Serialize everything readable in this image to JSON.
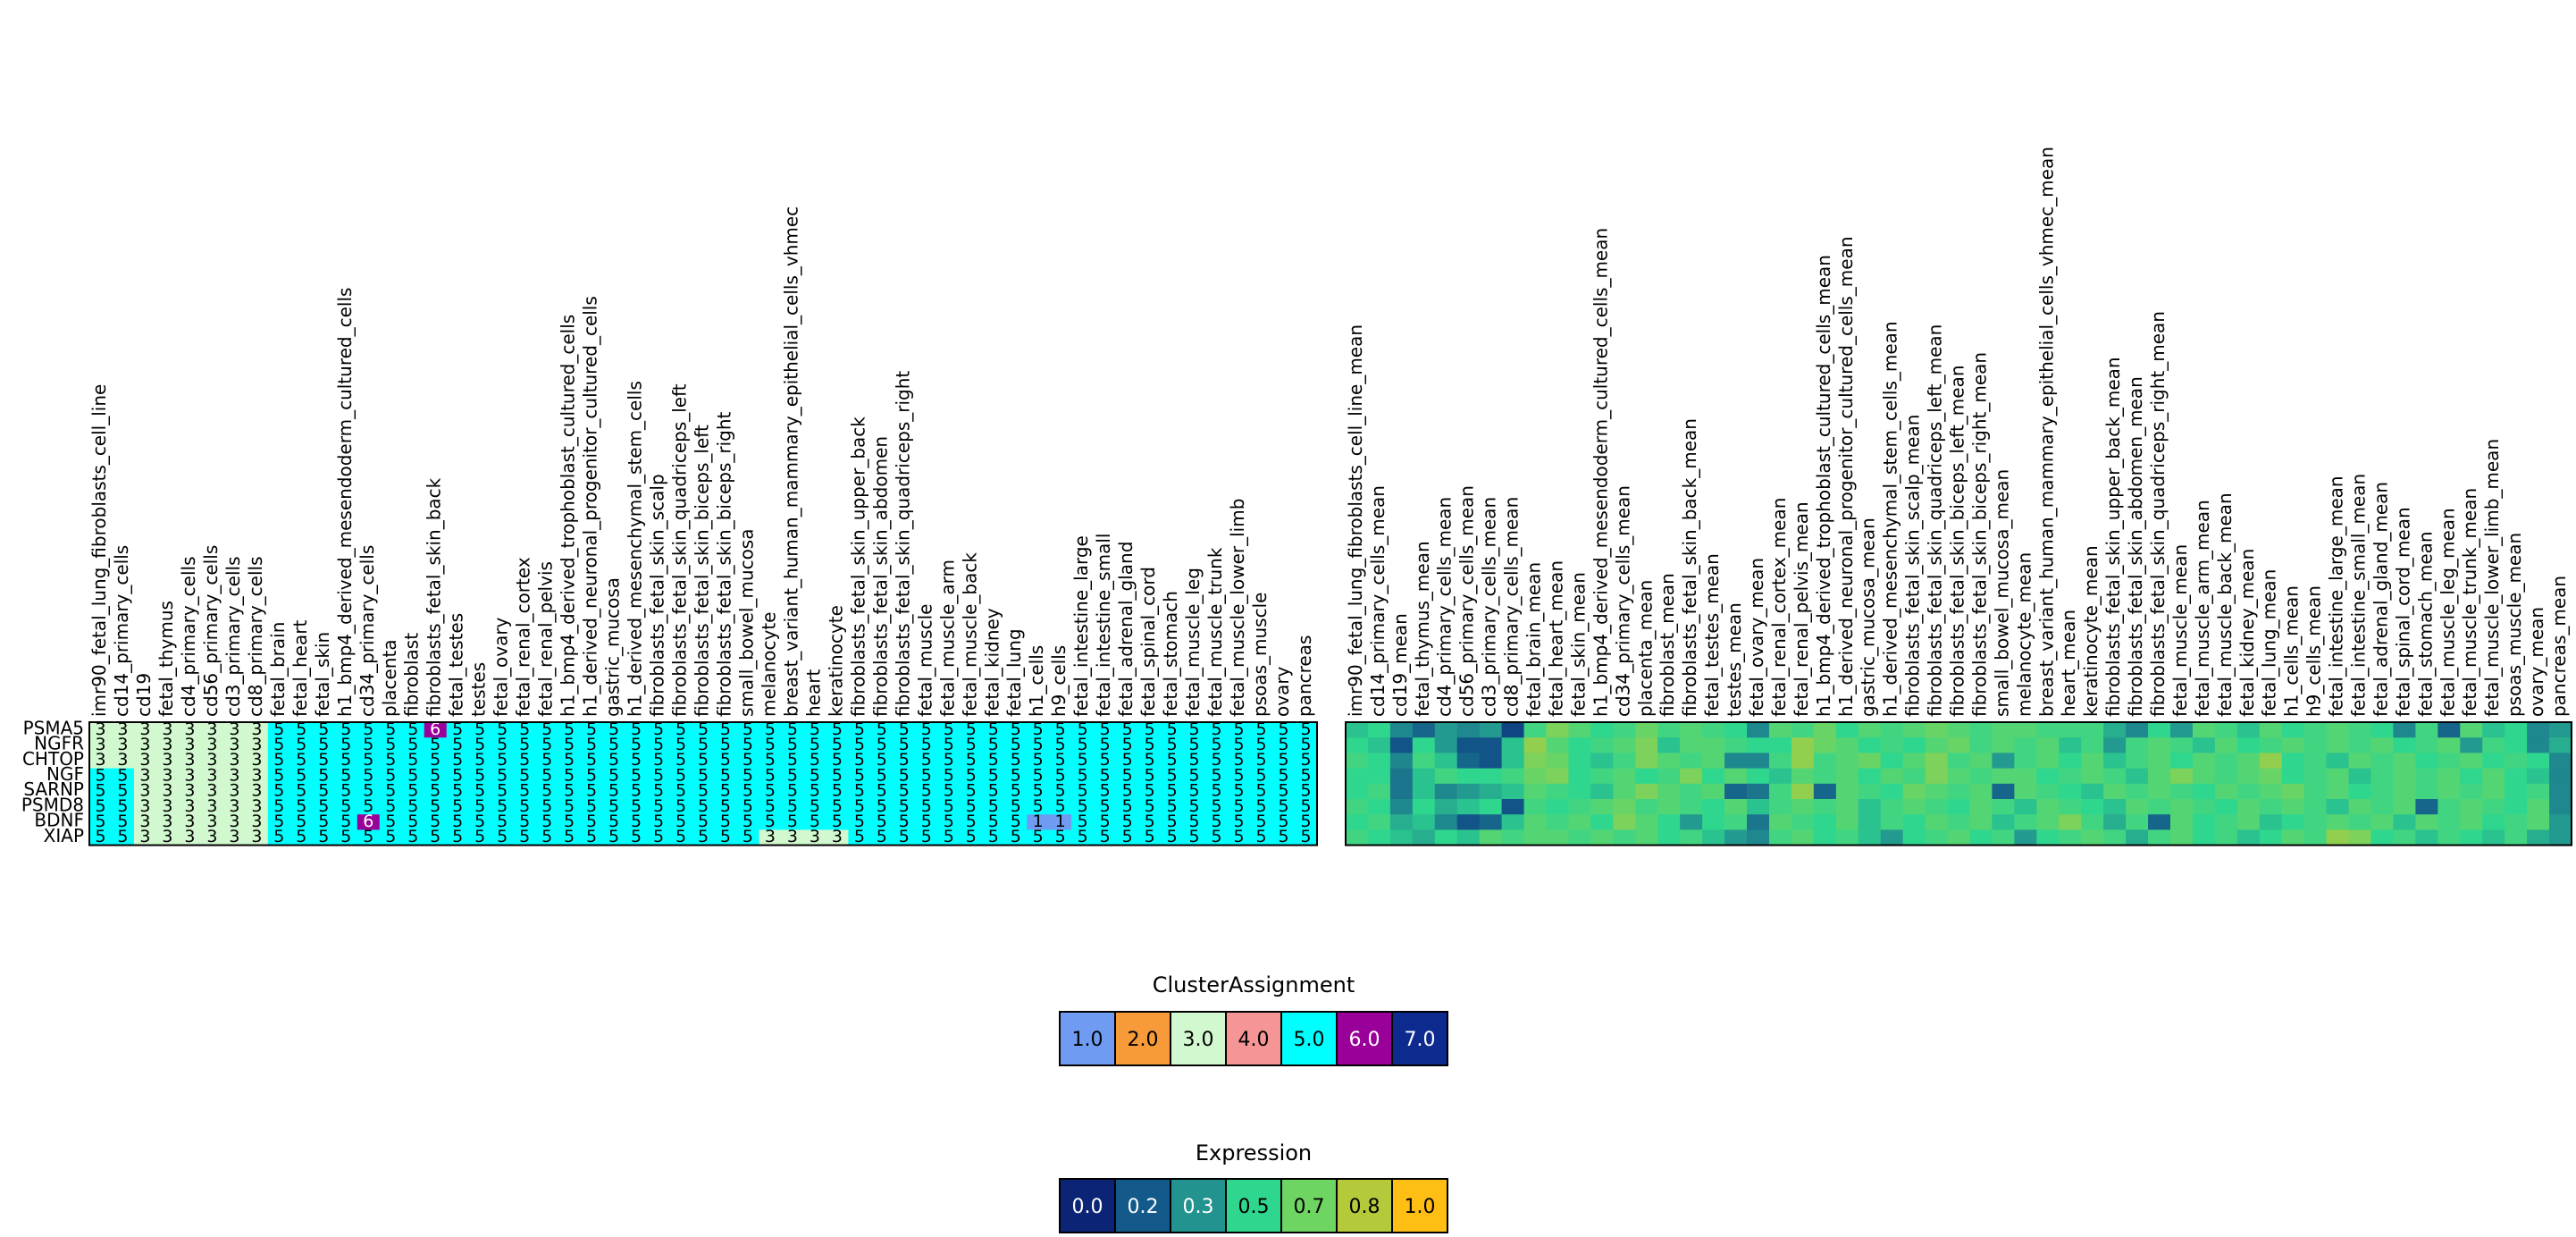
{
  "chart_data": {
    "type": "heatmap",
    "rows": [
      "PSMA5",
      "NGFR",
      "CHTOP",
      "NGF",
      "SARNP",
      "PSMD8",
      "BDNF",
      "XIAP"
    ],
    "cluster_columns": [
      "imr90_fetal_lung_fibroblasts_cell_line",
      "cd14_primary_cells",
      "cd19",
      "fetal_thymus",
      "cd4_primary_cells",
      "cd56_primary_cells",
      "cd3_primary_cells",
      "cd8_primary_cells",
      "fetal_brain",
      "fetal_heart",
      "fetal_skin",
      "h1_bmp4_derived_mesendoderm_cultured_cells",
      "cd34_primary_cells",
      "placenta",
      "fibroblast",
      "fibroblasts_fetal_skin_back",
      "fetal_testes",
      "testes",
      "fetal_ovary",
      "fetal_renal_cortex",
      "fetal_renal_pelvis",
      "h1_bmp4_derived_trophoblast_cultured_cells",
      "h1_derived_neuronal_progenitor_cultured_cells",
      "gastric_mucosa",
      "h1_derived_mesenchymal_stem_cells",
      "fibroblasts_fetal_skin_scalp",
      "fibroblasts_fetal_skin_quadriceps_left",
      "fibroblasts_fetal_skin_biceps_left",
      "fibroblasts_fetal_skin_biceps_right",
      "small_bowel_mucosa",
      "melanocyte",
      "breast_variant_human_mammary_epithelial_cells_vhmec",
      "heart",
      "keratinocyte",
      "fibroblasts_fetal_skin_upper_back",
      "fibroblasts_fetal_skin_abdomen",
      "fibroblasts_fetal_skin_quadriceps_right",
      "fetal_muscle",
      "fetal_muscle_arm",
      "fetal_muscle_back",
      "fetal_kidney",
      "fetal_lung",
      "h1_cells",
      "h9_cells",
      "fetal_intestine_large",
      "fetal_intestine_small",
      "fetal_adrenal_gland",
      "fetal_spinal_cord",
      "fetal_stomach",
      "fetal_muscle_leg",
      "fetal_muscle_trunk",
      "fetal_muscle_lower_limb",
      "psoas_muscle",
      "ovary",
      "pancreas"
    ],
    "cluster_values": [
      [
        3,
        3,
        3,
        3,
        3,
        3,
        3,
        3,
        5,
        5,
        5,
        5,
        5,
        5,
        5,
        6,
        5,
        5,
        5,
        5,
        5,
        5,
        5,
        5,
        5,
        5,
        5,
        5,
        5,
        5,
        5,
        5,
        5,
        5,
        5,
        5,
        5,
        5,
        5,
        5,
        5,
        5,
        5,
        5,
        5,
        5,
        5,
        5,
        5,
        5,
        5,
        5,
        5,
        5,
        5
      ],
      [
        3,
        3,
        3,
        3,
        3,
        3,
        3,
        3,
        5,
        5,
        5,
        5,
        5,
        5,
        5,
        5,
        5,
        5,
        5,
        5,
        5,
        5,
        5,
        5,
        5,
        5,
        5,
        5,
        5,
        5,
        5,
        5,
        5,
        5,
        5,
        5,
        5,
        5,
        5,
        5,
        5,
        5,
        5,
        5,
        5,
        5,
        5,
        5,
        5,
        5,
        5,
        5,
        5,
        5,
        5
      ],
      [
        3,
        3,
        3,
        3,
        3,
        3,
        3,
        3,
        5,
        5,
        5,
        5,
        5,
        5,
        5,
        5,
        5,
        5,
        5,
        5,
        5,
        5,
        5,
        5,
        5,
        5,
        5,
        5,
        5,
        5,
        5,
        5,
        5,
        5,
        5,
        5,
        5,
        5,
        5,
        5,
        5,
        5,
        5,
        5,
        5,
        5,
        5,
        5,
        5,
        5,
        5,
        5,
        5,
        5,
        5
      ],
      [
        5,
        5,
        3,
        3,
        3,
        3,
        3,
        3,
        5,
        5,
        5,
        5,
        5,
        5,
        5,
        5,
        5,
        5,
        5,
        5,
        5,
        5,
        5,
        5,
        5,
        5,
        5,
        5,
        5,
        5,
        5,
        5,
        5,
        5,
        5,
        5,
        5,
        5,
        5,
        5,
        5,
        5,
        5,
        5,
        5,
        5,
        5,
        5,
        5,
        5,
        5,
        5,
        5,
        5,
        5
      ],
      [
        5,
        5,
        3,
        3,
        3,
        3,
        3,
        3,
        5,
        5,
        5,
        5,
        5,
        5,
        5,
        5,
        5,
        5,
        5,
        5,
        5,
        5,
        5,
        5,
        5,
        5,
        5,
        5,
        5,
        5,
        5,
        5,
        5,
        5,
        5,
        5,
        5,
        5,
        5,
        5,
        5,
        5,
        5,
        5,
        5,
        5,
        5,
        5,
        5,
        5,
        5,
        5,
        5,
        5,
        5
      ],
      [
        5,
        5,
        3,
        3,
        3,
        3,
        3,
        3,
        5,
        5,
        5,
        5,
        5,
        5,
        5,
        5,
        5,
        5,
        5,
        5,
        5,
        5,
        5,
        5,
        5,
        5,
        5,
        5,
        5,
        5,
        5,
        5,
        5,
        5,
        5,
        5,
        5,
        5,
        5,
        5,
        5,
        5,
        5,
        5,
        5,
        5,
        5,
        5,
        5,
        5,
        5,
        5,
        5,
        5,
        5
      ],
      [
        5,
        5,
        3,
        3,
        3,
        3,
        3,
        3,
        5,
        5,
        5,
        5,
        6,
        5,
        5,
        5,
        5,
        5,
        5,
        5,
        5,
        5,
        5,
        5,
        5,
        5,
        5,
        5,
        5,
        5,
        5,
        5,
        5,
        5,
        5,
        5,
        5,
        5,
        5,
        5,
        5,
        5,
        1,
        1,
        5,
        5,
        5,
        5,
        5,
        5,
        5,
        5,
        5,
        5,
        5
      ],
      [
        5,
        5,
        3,
        3,
        3,
        3,
        3,
        3,
        5,
        5,
        5,
        5,
        5,
        5,
        5,
        5,
        5,
        5,
        5,
        5,
        5,
        5,
        5,
        5,
        5,
        5,
        5,
        5,
        5,
        5,
        3,
        3,
        3,
        3,
        5,
        5,
        5,
        5,
        5,
        5,
        5,
        5,
        5,
        5,
        5,
        5,
        5,
        5,
        5,
        5,
        5,
        5,
        5,
        5,
        5
      ]
    ],
    "mean_columns": [
      "imr90_fetal_lung_fibroblasts_cell_line_mean",
      "cd14_primary_cells_mean",
      "cd19_mean",
      "fetal_thymus_mean",
      "cd4_primary_cells_mean",
      "cd56_primary_cells_mean",
      "cd3_primary_cells_mean",
      "cd8_primary_cells_mean",
      "fetal_brain_mean",
      "fetal_heart_mean",
      "fetal_skin_mean",
      "h1_bmp4_derived_mesendoderm_cultured_cells_mean",
      "cd34_primary_cells_mean",
      "placenta_mean",
      "fibroblast_mean",
      "fibroblasts_fetal_skin_back_mean",
      "fetal_testes_mean",
      "testes_mean",
      "fetal_ovary_mean",
      "fetal_renal_cortex_mean",
      "fetal_renal_pelvis_mean",
      "h1_bmp4_derived_trophoblast_cultured_cells_mean",
      "h1_derived_neuronal_progenitor_cultured_cells_mean",
      "gastric_mucosa_mean",
      "h1_derived_mesenchymal_stem_cells_mean",
      "fibroblasts_fetal_skin_scalp_mean",
      "fibroblasts_fetal_skin_quadriceps_left_mean",
      "fibroblasts_fetal_skin_biceps_left_mean",
      "fibroblasts_fetal_skin_biceps_right_mean",
      "small_bowel_mucosa_mean",
      "melanocyte_mean",
      "breast_variant_human_mammary_epithelial_cells_vhmec_mean",
      "heart_mean",
      "keratinocyte_mean",
      "fibroblasts_fetal_skin_upper_back_mean",
      "fibroblasts_fetal_skin_abdomen_mean",
      "fibroblasts_fetal_skin_quadriceps_right_mean",
      "fetal_muscle_mean",
      "fetal_muscle_arm_mean",
      "fetal_muscle_back_mean",
      "fetal_kidney_mean",
      "fetal_lung_mean",
      "h1_cells_mean",
      "h9_cells_mean",
      "fetal_intestine_large_mean",
      "fetal_intestine_small_mean",
      "fetal_adrenal_gland_mean",
      "fetal_spinal_cord_mean",
      "fetal_stomach_mean",
      "fetal_muscle_leg_mean",
      "fetal_muscle_trunk_mean",
      "fetal_muscle_lower_limb_mean",
      "psoas_muscle_mean",
      "ovary_mean",
      "pancreas_mean"
    ],
    "mean_values": [
      [
        0.45,
        0.5,
        0.3,
        0.2,
        0.35,
        0.3,
        0.35,
        0.1,
        0.55,
        0.7,
        0.6,
        0.5,
        0.55,
        0.65,
        0.55,
        0.6,
        0.55,
        0.5,
        0.3,
        0.6,
        0.55,
        0.65,
        0.5,
        0.6,
        0.55,
        0.6,
        0.65,
        0.6,
        0.55,
        0.6,
        0.6,
        0.55,
        0.55,
        0.55,
        0.4,
        0.3,
        0.5,
        0.35,
        0.6,
        0.55,
        0.45,
        0.6,
        0.5,
        0.55,
        0.6,
        0.55,
        0.5,
        0.3,
        0.55,
        0.2,
        0.6,
        0.45,
        0.5,
        0.3,
        0.35
      ],
      [
        0.5,
        0.45,
        0.15,
        0.5,
        0.35,
        0.15,
        0.15,
        0.45,
        0.75,
        0.6,
        0.5,
        0.55,
        0.6,
        0.7,
        0.45,
        0.6,
        0.6,
        0.55,
        0.5,
        0.5,
        0.75,
        0.65,
        0.6,
        0.5,
        0.55,
        0.5,
        0.6,
        0.65,
        0.55,
        0.6,
        0.55,
        0.6,
        0.45,
        0.55,
        0.35,
        0.55,
        0.6,
        0.55,
        0.45,
        0.6,
        0.5,
        0.55,
        0.6,
        0.55,
        0.6,
        0.55,
        0.6,
        0.5,
        0.55,
        0.6,
        0.35,
        0.55,
        0.5,
        0.3,
        0.4
      ],
      [
        0.55,
        0.5,
        0.3,
        0.55,
        0.45,
        0.2,
        0.15,
        0.45,
        0.7,
        0.65,
        0.5,
        0.45,
        0.55,
        0.7,
        0.6,
        0.55,
        0.6,
        0.3,
        0.3,
        0.55,
        0.75,
        0.55,
        0.6,
        0.65,
        0.5,
        0.6,
        0.7,
        0.55,
        0.6,
        0.35,
        0.55,
        0.6,
        0.5,
        0.6,
        0.45,
        0.55,
        0.6,
        0.5,
        0.6,
        0.55,
        0.6,
        0.75,
        0.5,
        0.55,
        0.45,
        0.6,
        0.55,
        0.6,
        0.5,
        0.55,
        0.6,
        0.5,
        0.55,
        0.5,
        0.3
      ],
      [
        0.5,
        0.5,
        0.25,
        0.45,
        0.55,
        0.5,
        0.5,
        0.55,
        0.65,
        0.7,
        0.5,
        0.55,
        0.6,
        0.5,
        0.55,
        0.7,
        0.5,
        0.6,
        0.5,
        0.45,
        0.6,
        0.55,
        0.6,
        0.5,
        0.6,
        0.55,
        0.7,
        0.6,
        0.55,
        0.6,
        0.6,
        0.5,
        0.55,
        0.6,
        0.55,
        0.45,
        0.6,
        0.7,
        0.6,
        0.55,
        0.6,
        0.65,
        0.5,
        0.55,
        0.6,
        0.45,
        0.55,
        0.6,
        0.55,
        0.6,
        0.5,
        0.6,
        0.5,
        0.45,
        0.3
      ],
      [
        0.5,
        0.55,
        0.25,
        0.45,
        0.3,
        0.35,
        0.4,
        0.45,
        0.6,
        0.55,
        0.5,
        0.45,
        0.6,
        0.7,
        0.6,
        0.55,
        0.6,
        0.2,
        0.25,
        0.55,
        0.75,
        0.2,
        0.6,
        0.55,
        0.5,
        0.65,
        0.6,
        0.55,
        0.6,
        0.2,
        0.6,
        0.55,
        0.5,
        0.45,
        0.6,
        0.55,
        0.6,
        0.55,
        0.5,
        0.6,
        0.55,
        0.6,
        0.65,
        0.55,
        0.6,
        0.5,
        0.55,
        0.6,
        0.55,
        0.6,
        0.55,
        0.6,
        0.5,
        0.55,
        0.3
      ],
      [
        0.55,
        0.5,
        0.3,
        0.5,
        0.4,
        0.45,
        0.5,
        0.15,
        0.55,
        0.5,
        0.55,
        0.6,
        0.65,
        0.55,
        0.6,
        0.55,
        0.5,
        0.6,
        0.45,
        0.55,
        0.6,
        0.55,
        0.6,
        0.45,
        0.55,
        0.6,
        0.55,
        0.5,
        0.6,
        0.55,
        0.45,
        0.6,
        0.55,
        0.5,
        0.45,
        0.6,
        0.55,
        0.6,
        0.55,
        0.5,
        0.6,
        0.55,
        0.6,
        0.55,
        0.45,
        0.6,
        0.55,
        0.6,
        0.2,
        0.55,
        0.6,
        0.55,
        0.5,
        0.6,
        0.3
      ],
      [
        0.5,
        0.55,
        0.4,
        0.45,
        0.3,
        0.15,
        0.2,
        0.45,
        0.6,
        0.55,
        0.6,
        0.5,
        0.7,
        0.6,
        0.5,
        0.35,
        0.5,
        0.55,
        0.25,
        0.6,
        0.55,
        0.5,
        0.6,
        0.45,
        0.55,
        0.5,
        0.6,
        0.55,
        0.6,
        0.45,
        0.55,
        0.6,
        0.7,
        0.55,
        0.4,
        0.55,
        0.2,
        0.6,
        0.5,
        0.55,
        0.6,
        0.45,
        0.5,
        0.55,
        0.6,
        0.55,
        0.6,
        0.45,
        0.6,
        0.55,
        0.6,
        0.5,
        0.55,
        0.6,
        0.35
      ],
      [
        0.55,
        0.5,
        0.45,
        0.4,
        0.5,
        0.45,
        0.6,
        0.55,
        0.6,
        0.6,
        0.55,
        0.6,
        0.55,
        0.6,
        0.5,
        0.55,
        0.45,
        0.35,
        0.3,
        0.55,
        0.6,
        0.5,
        0.55,
        0.45,
        0.35,
        0.5,
        0.55,
        0.6,
        0.5,
        0.55,
        0.35,
        0.5,
        0.55,
        0.6,
        0.55,
        0.4,
        0.55,
        0.6,
        0.5,
        0.55,
        0.45,
        0.5,
        0.6,
        0.55,
        0.75,
        0.7,
        0.5,
        0.55,
        0.45,
        0.55,
        0.5,
        0.45,
        0.55,
        0.4,
        0.35
      ]
    ],
    "cluster_legend": {
      "title": "ClusterAssignment",
      "entries": [
        "1.0",
        "2.0",
        "3.0",
        "4.0",
        "5.0",
        "6.0",
        "7.0"
      ],
      "colors": [
        "#6f9bf2",
        "#f79a3a",
        "#d2f8cf",
        "#f59595",
        "#00ffff",
        "#990099",
        "#0d2a8f"
      ]
    },
    "expression_legend": {
      "title": "Expression",
      "entries": [
        "0.0",
        "0.2",
        "0.3",
        "0.5",
        "0.7",
        "0.8",
        "1.0"
      ],
      "colors": [
        "#0c2475",
        "#13598a",
        "#22938f",
        "#2ed68e",
        "#6ed462",
        "#b5c93a",
        "#ffbe14"
      ]
    }
  }
}
